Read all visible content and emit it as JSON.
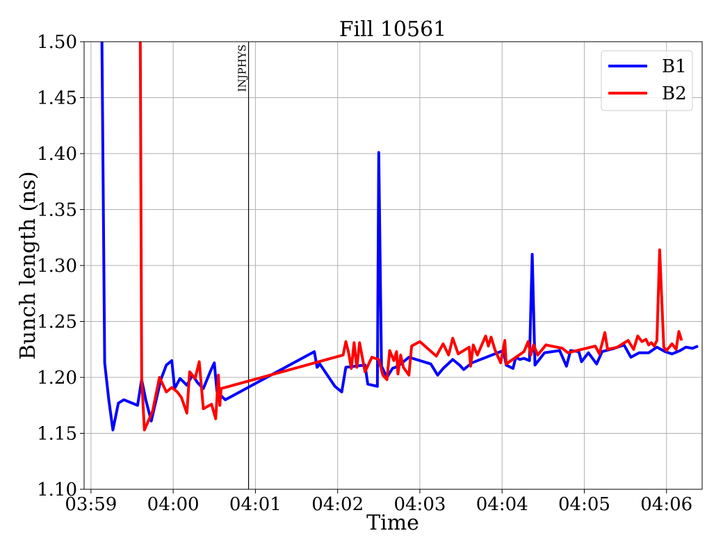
{
  "chart_data": {
    "type": "line",
    "title": "Fill 10561",
    "xlabel": "Time",
    "ylabel": "Bunch length (ns)",
    "x_unit": "time (HH:MM:SS)",
    "xlim": [
      "03:58:55",
      "04:06:26"
    ],
    "ylim": [
      1.1,
      1.5
    ],
    "x_ticks": [
      "03:59",
      "04:00",
      "04:01",
      "04:02",
      "04:03",
      "04:04",
      "04:05",
      "04:06"
    ],
    "y_ticks": [
      "1.10",
      "1.15",
      "1.20",
      "1.25",
      "1.30",
      "1.35",
      "1.40",
      "1.45",
      "1.50"
    ],
    "grid": true,
    "legend_position": "top-right",
    "colors": {
      "B1": "#0000ff",
      "B2": "#ff0000",
      "marker": "#000000",
      "grid": "#b0b0b0"
    },
    "annotations": [
      {
        "text": "INJPHYS",
        "x": "04:00:55",
        "type": "vertical-line"
      }
    ],
    "series": [
      {
        "name": "B1",
        "color": "#0000ff",
        "points": [
          [
            "03:59:08",
            1.5
          ],
          [
            "03:59:10",
            1.213
          ],
          [
            "03:59:13",
            1.18
          ],
          [
            "03:59:16",
            1.153
          ],
          [
            "03:59:20",
            1.177
          ],
          [
            "03:59:24",
            1.18
          ],
          [
            "03:59:34",
            1.175
          ],
          [
            "03:59:37",
            1.198
          ],
          [
            "03:59:40",
            1.18
          ],
          [
            "03:59:44",
            1.161
          ],
          [
            "03:59:51",
            1.198
          ],
          [
            "03:59:55",
            1.211
          ],
          [
            "03:59:59",
            1.215
          ],
          [
            "04:00:01",
            1.19
          ],
          [
            "04:00:05",
            1.199
          ],
          [
            "04:00:10",
            1.193
          ],
          [
            "04:00:14",
            1.202
          ],
          [
            "04:00:18",
            1.195
          ],
          [
            "04:00:22",
            1.19
          ],
          [
            "04:00:27",
            1.205
          ],
          [
            "04:00:30",
            1.213
          ],
          [
            "04:00:32",
            1.187
          ],
          [
            "04:00:38",
            1.18
          ],
          [
            "04:01:43",
            1.223
          ],
          [
            "04:01:45",
            1.209
          ],
          [
            "04:01:47",
            1.212
          ],
          [
            "04:01:58",
            1.192
          ],
          [
            "04:02:03",
            1.187
          ],
          [
            "04:02:06",
            1.209
          ],
          [
            "04:02:20",
            1.211
          ],
          [
            "04:02:22",
            1.194
          ],
          [
            "04:02:29",
            1.192
          ],
          [
            "04:02:30",
            1.401
          ],
          [
            "04:02:32",
            1.21
          ],
          [
            "04:02:36",
            1.2
          ],
          [
            "04:02:40",
            1.208
          ],
          [
            "04:02:44",
            1.21
          ],
          [
            "04:02:52",
            1.218
          ],
          [
            "04:03:08",
            1.212
          ],
          [
            "04:03:13",
            1.202
          ],
          [
            "04:03:17",
            1.208
          ],
          [
            "04:03:24",
            1.216
          ],
          [
            "04:03:29",
            1.211
          ],
          [
            "04:03:32",
            1.207
          ],
          [
            "04:03:38",
            1.213
          ],
          [
            "04:04:01",
            1.224
          ],
          [
            "04:04:03",
            1.211
          ],
          [
            "04:04:08",
            1.208
          ],
          [
            "04:04:10",
            1.218
          ],
          [
            "04:04:13",
            1.216
          ],
          [
            "04:04:16",
            1.217
          ],
          [
            "04:04:20",
            1.215
          ],
          [
            "04:04:22",
            1.31
          ],
          [
            "04:04:24",
            1.211
          ],
          [
            "04:04:31",
            1.222
          ],
          [
            "04:04:42",
            1.224
          ],
          [
            "04:04:47",
            1.21
          ],
          [
            "04:04:50",
            1.224
          ],
          [
            "04:04:56",
            1.223
          ],
          [
            "04:04:58",
            1.214
          ],
          [
            "04:05:03",
            1.222
          ],
          [
            "04:05:09",
            1.212
          ],
          [
            "04:05:13",
            1.223
          ],
          [
            "04:05:22",
            1.226
          ],
          [
            "04:05:29",
            1.229
          ],
          [
            "04:05:34",
            1.218
          ],
          [
            "04:05:40",
            1.222
          ],
          [
            "04:05:47",
            1.222
          ],
          [
            "04:05:53",
            1.227
          ],
          [
            "04:05:59",
            1.223
          ],
          [
            "04:06:04",
            1.221
          ],
          [
            "04:06:10",
            1.224
          ],
          [
            "04:06:14",
            1.227
          ],
          [
            "04:06:19",
            1.226
          ],
          [
            "04:06:23",
            1.228
          ]
        ]
      },
      {
        "name": "B2",
        "color": "#ff0000",
        "points": [
          [
            "03:59:36",
            1.5
          ],
          [
            "03:59:37",
            1.199
          ],
          [
            "03:59:39",
            1.153
          ],
          [
            "03:59:45",
            1.17
          ],
          [
            "03:59:50",
            1.2
          ],
          [
            "03:59:55",
            1.187
          ],
          [
            "03:59:59",
            1.191
          ],
          [
            "04:00:03",
            1.187
          ],
          [
            "04:00:06",
            1.182
          ],
          [
            "04:00:10",
            1.168
          ],
          [
            "04:00:12",
            1.205
          ],
          [
            "04:00:16",
            1.199
          ],
          [
            "04:00:19",
            1.214
          ],
          [
            "04:00:22",
            1.172
          ],
          [
            "04:00:28",
            1.176
          ],
          [
            "04:00:31",
            1.163
          ],
          [
            "04:00:33",
            1.202
          ],
          [
            "04:00:34",
            1.175
          ],
          [
            "04:00:35",
            1.19
          ],
          [
            "04:02:04",
            1.22
          ],
          [
            "04:02:06",
            1.232
          ],
          [
            "04:02:08",
            1.222
          ],
          [
            "04:02:10",
            1.208
          ],
          [
            "04:02:12",
            1.231
          ],
          [
            "04:02:14",
            1.209
          ],
          [
            "04:02:16",
            1.231
          ],
          [
            "04:02:20",
            1.205
          ],
          [
            "04:02:25",
            1.218
          ],
          [
            "04:02:30",
            1.216
          ],
          [
            "04:02:33",
            1.202
          ],
          [
            "04:02:36",
            1.198
          ],
          [
            "04:02:38",
            1.224
          ],
          [
            "04:02:41",
            1.215
          ],
          [
            "04:02:43",
            1.223
          ],
          [
            "04:02:44",
            1.203
          ],
          [
            "04:02:46",
            1.22
          ],
          [
            "04:02:48",
            1.209
          ],
          [
            "04:02:52",
            1.202
          ],
          [
            "04:02:54",
            1.228
          ],
          [
            "04:03:00",
            1.232
          ],
          [
            "04:03:12",
            1.219
          ],
          [
            "04:03:17",
            1.23
          ],
          [
            "04:03:21",
            1.22
          ],
          [
            "04:03:24",
            1.235
          ],
          [
            "04:03:28",
            1.221
          ],
          [
            "04:03:36",
            1.227
          ],
          [
            "04:03:37",
            1.21
          ],
          [
            "04:03:39",
            1.229
          ],
          [
            "04:03:42",
            1.22
          ],
          [
            "04:03:48",
            1.237
          ],
          [
            "04:03:50",
            1.228
          ],
          [
            "04:03:52",
            1.236
          ],
          [
            "04:03:55",
            1.224
          ],
          [
            "04:03:59",
            1.213
          ],
          [
            "04:04:02",
            1.233
          ],
          [
            "04:04:03",
            1.212
          ],
          [
            "04:04:16",
            1.223
          ],
          [
            "04:04:19",
            1.232
          ],
          [
            "04:04:21",
            1.22
          ],
          [
            "04:04:23",
            1.229
          ],
          [
            "04:04:26",
            1.22
          ],
          [
            "04:04:32",
            1.229
          ],
          [
            "04:04:44",
            1.226
          ],
          [
            "04:04:48",
            1.222
          ],
          [
            "04:05:08",
            1.228
          ],
          [
            "04:05:11",
            1.221
          ],
          [
            "04:05:15",
            1.24
          ],
          [
            "04:05:17",
            1.225
          ],
          [
            "04:05:24",
            1.227
          ],
          [
            "04:05:32",
            1.233
          ],
          [
            "04:05:36",
            1.225
          ],
          [
            "04:05:39",
            1.237
          ],
          [
            "04:05:42",
            1.232
          ],
          [
            "04:05:45",
            1.234
          ],
          [
            "04:05:47",
            1.229
          ],
          [
            "04:05:49",
            1.231
          ],
          [
            "04:05:51",
            1.228
          ],
          [
            "04:05:53",
            1.233
          ],
          [
            "04:05:55",
            1.314
          ],
          [
            "04:05:58",
            1.227
          ],
          [
            "04:06:00",
            1.224
          ],
          [
            "04:06:04",
            1.23
          ],
          [
            "04:06:07",
            1.225
          ],
          [
            "04:06:09",
            1.241
          ],
          [
            "04:06:11",
            1.233
          ]
        ]
      }
    ]
  }
}
